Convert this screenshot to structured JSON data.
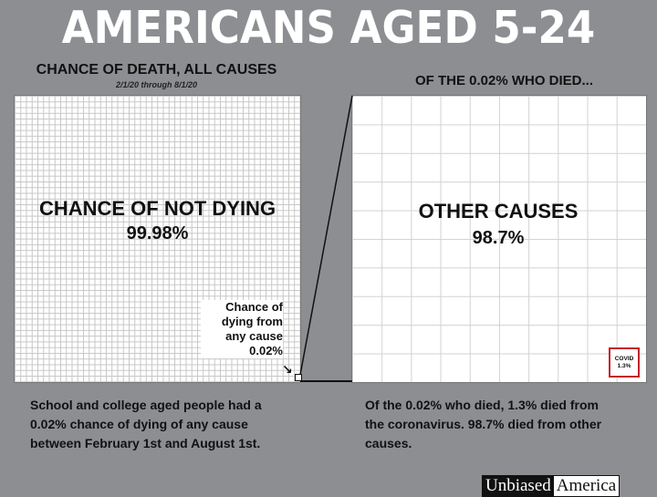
{
  "title": "AMERICANS AGED 5-24",
  "left": {
    "heading": "CHANCE OF DEATH, ALL CAUSES",
    "subheading": "2/1/20 through 8/1/20",
    "big_label": "CHANCE OF NOT DYING",
    "big_value": "99.98%",
    "callout_lines": [
      "Chance of",
      "dying from",
      "any cause",
      "0.02%"
    ],
    "arrow": "↘",
    "description_lines": [
      "School and college aged people had a",
      "0.02% chance of dying of any cause",
      "between February 1st and August 1st."
    ]
  },
  "right": {
    "heading": "OF THE 0.02% WHO DIED...",
    "big_label": "OTHER CAUSES",
    "big_value": "98.7%",
    "covid_label": "COVID",
    "covid_value": "1.3%",
    "description_lines": [
      "Of the 0.02% who died, 1.3% died from",
      "the coronavirus.  98.7% died from other",
      "causes."
    ]
  },
  "brand": {
    "part1": "Unbiased",
    "part2": "America"
  },
  "colors": {
    "background": "#8c8e92",
    "covid_border": "#c2222a",
    "title": "#ffffff"
  },
  "chart_data": [
    {
      "type": "area",
      "title": "CHANCE OF DEATH, ALL CAUSES",
      "subtitle": "2/1/20 through 8/1/20",
      "categories": [
        "CHANCE OF NOT DYING",
        "dying from any cause"
      ],
      "values": [
        99.98,
        0.02
      ],
      "unit": "%"
    },
    {
      "type": "area",
      "title": "OF THE 0.02% WHO DIED...",
      "categories": [
        "OTHER CAUSES",
        "COVID"
      ],
      "values": [
        98.7,
        1.3
      ],
      "unit": "%"
    }
  ]
}
